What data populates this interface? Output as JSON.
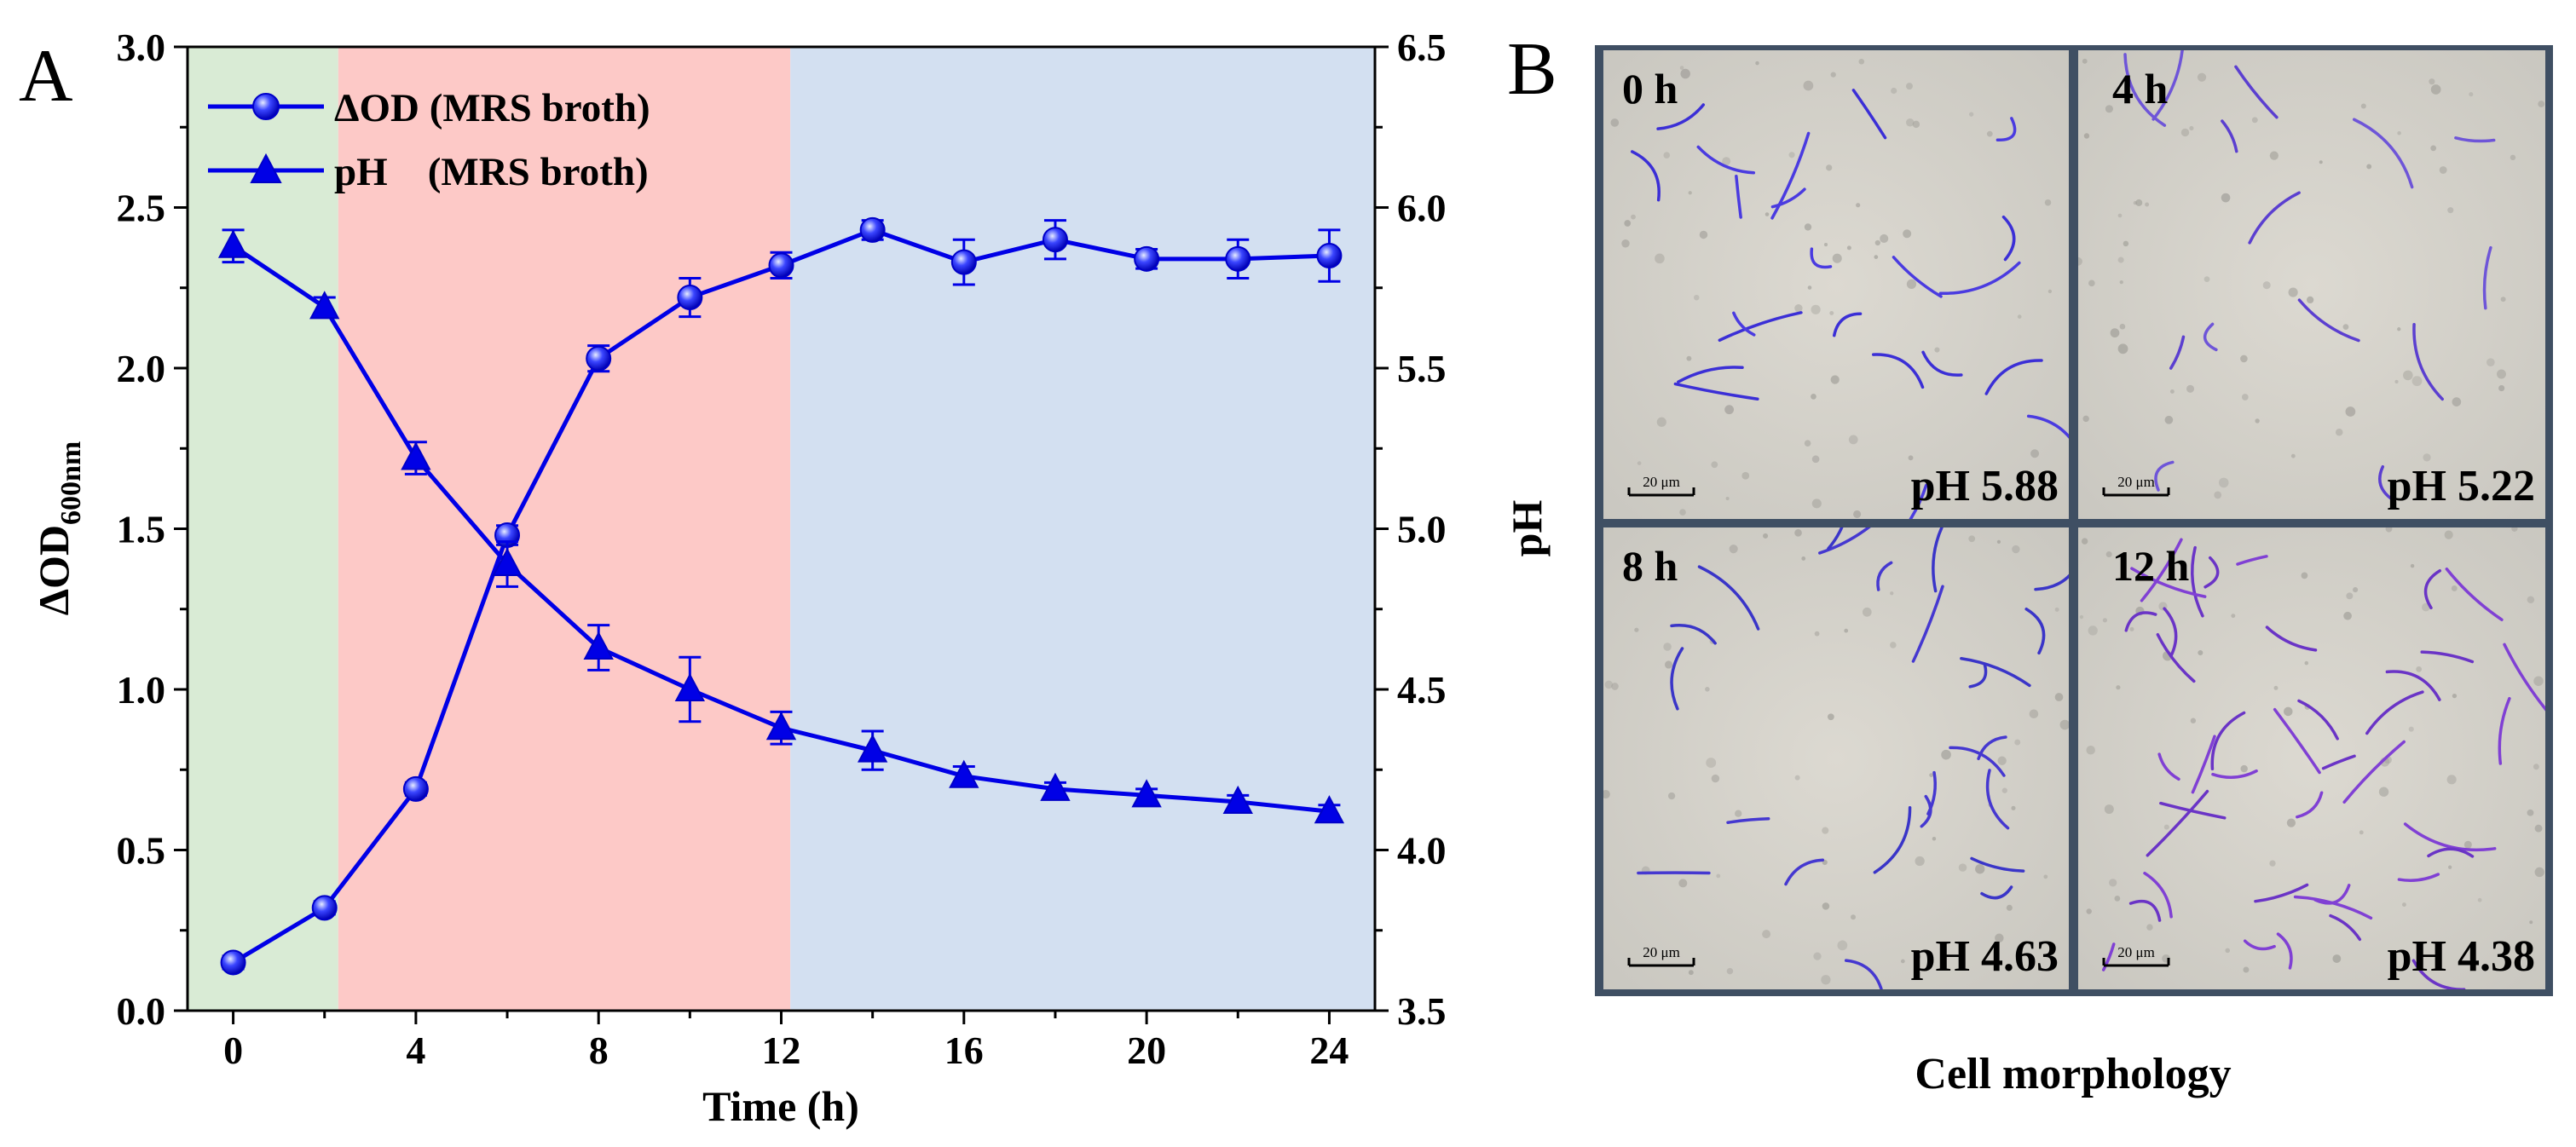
{
  "panel_a": {
    "label": "A",
    "chart_data": {
      "type": "line",
      "xlabel": "Time (h)",
      "ylabel_main": "ΔOD",
      "ylabel_sub": "600nm",
      "y2label": "pH",
      "xlim": [
        -1,
        25
      ],
      "ylim": [
        0,
        3.0
      ],
      "y2lim": [
        3.5,
        6.5
      ],
      "x_ticks": [
        0,
        4,
        8,
        12,
        16,
        20,
        24
      ],
      "y_ticks": [
        "0.0",
        "0.5",
        "1.0",
        "1.5",
        "2.0",
        "2.5",
        "3.0"
      ],
      "y2_ticks": [
        "3.5",
        "4.0",
        "4.5",
        "5.0",
        "5.5",
        "6.0",
        "6.5"
      ],
      "x": [
        0,
        2,
        4,
        6,
        8,
        10,
        12,
        14,
        16,
        18,
        20,
        22,
        24
      ],
      "phases": [
        {
          "x0": -1,
          "x1": 2.3,
          "color": "#d9ebd5"
        },
        {
          "x0": 2.3,
          "x1": 12.2,
          "color": "#fdc9c7"
        },
        {
          "x0": 12.2,
          "x1": 25,
          "color": "#d3e0f1"
        }
      ],
      "series": [
        {
          "name": "ΔOD (MRS broth)",
          "axis": "left",
          "marker": "circle",
          "color": "#0000e6",
          "values": [
            0.15,
            0.32,
            0.69,
            1.48,
            2.03,
            2.22,
            2.32,
            2.43,
            2.33,
            2.4,
            2.34,
            2.34,
            2.35
          ],
          "errors": [
            0.02,
            0.02,
            0.02,
            0.03,
            0.04,
            0.06,
            0.04,
            0.03,
            0.07,
            0.06,
            0.03,
            0.06,
            0.08
          ]
        },
        {
          "name": "pH    (MRS broth)",
          "axis": "right",
          "marker": "triangle",
          "color": "#0000e6",
          "values": [
            5.88,
            5.69,
            5.22,
            4.89,
            4.63,
            4.5,
            4.38,
            4.31,
            4.23,
            4.19,
            4.17,
            4.15,
            4.12
          ],
          "errors": [
            0.05,
            0.03,
            0.05,
            0.07,
            0.07,
            0.1,
            0.05,
            0.06,
            0.03,
            0.02,
            0.02,
            0.02,
            0.02
          ]
        }
      ],
      "legend_position": "top-left"
    }
  },
  "panel_b": {
    "label": "B",
    "caption": "Cell morphology",
    "scale_bar_label": "20 μm",
    "border_color": "#3f4f63",
    "tiles": [
      {
        "time": "0 h",
        "ph": "pH 5.88"
      },
      {
        "time": "4 h",
        "ph": "pH 5.22"
      },
      {
        "time": "8 h",
        "ph": "pH 4.63"
      },
      {
        "time": "12 h",
        "ph": "pH 4.38"
      }
    ]
  }
}
